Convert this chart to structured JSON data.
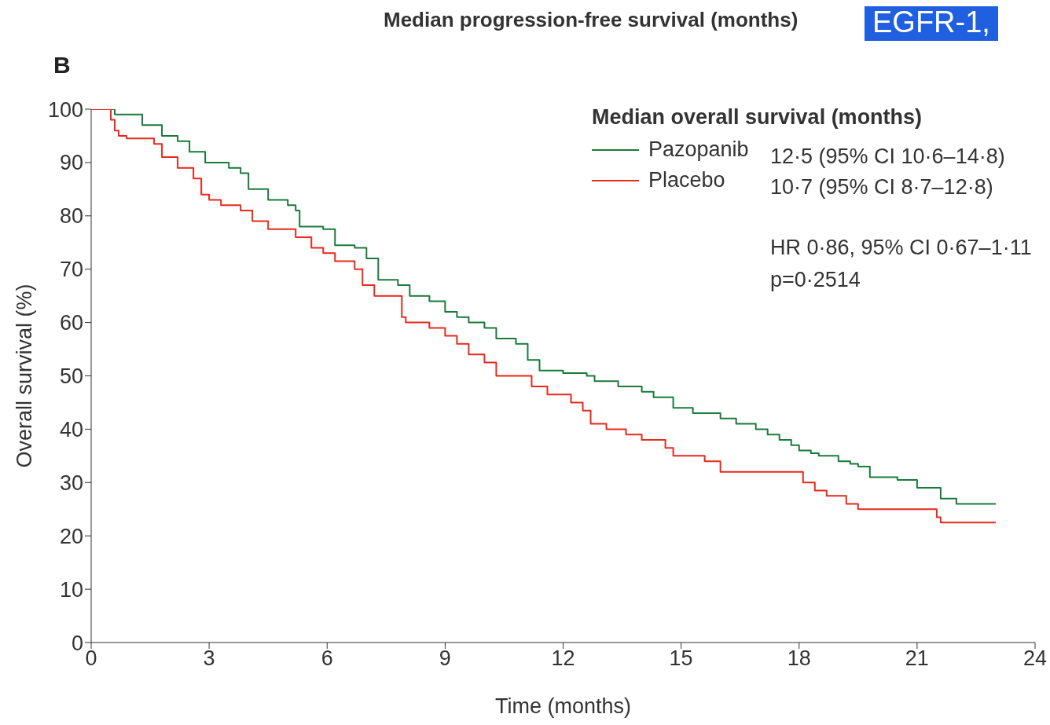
{
  "chart_data": {
    "type": "step",
    "xlabel": "Time (months)",
    "ylabel": "Overall survival (%)",
    "legend_title": "Median overall survival (months)",
    "annotations": [
      "Median progression-free survival (months)",
      "EGFR-1,",
      "B",
      "12·5 (95% CI 10·6–14·8)",
      "10·7 (95% CI 8·7–12·8)",
      "HR 0·86, 95% CI 0·67–1·11",
      "p=0·2514"
    ],
    "series": [
      {
        "name": "Pazopanib",
        "color": "#1a7a3a",
        "x": [
          0,
          0.6,
          1.3,
          1.8,
          2.2,
          2.5,
          2.9,
          3.5,
          3.8,
          4.0,
          4.5,
          5.0,
          5.2,
          5.3,
          5.9,
          6.2,
          6.7,
          7.0,
          7.3,
          7.8,
          8.1,
          8.6,
          9.0,
          9.3,
          9.6,
          10.0,
          10.3,
          10.8,
          11.1,
          11.4,
          12.0,
          12.6,
          12.8,
          13.4,
          14.0,
          14.3,
          14.8,
          15.3,
          16.0,
          16.4,
          16.9,
          17.2,
          17.5,
          17.8,
          18.0,
          18.3,
          18.5,
          19.0,
          19.3,
          19.5,
          19.8,
          20.5,
          21.0,
          21.6,
          22.0,
          23.0
        ],
        "values": [
          100,
          99,
          97,
          95,
          94,
          92,
          90,
          89,
          88,
          85,
          83,
          82,
          81,
          78,
          77.5,
          74.5,
          74,
          72,
          68,
          67,
          65,
          64,
          62,
          61,
          60,
          59,
          57,
          56,
          53,
          51,
          50.5,
          50,
          49,
          48,
          47,
          46,
          44,
          43,
          42,
          41,
          40,
          39,
          38,
          37,
          36,
          35.5,
          35,
          34,
          33.5,
          33,
          31,
          30.5,
          29,
          27,
          26,
          26
        ]
      },
      {
        "name": "Placebo",
        "color": "#e8291c",
        "x": [
          0,
          0.5,
          0.6,
          0.7,
          0.9,
          1.6,
          1.8,
          2.2,
          2.6,
          2.8,
          3.0,
          3.3,
          3.8,
          4.1,
          4.5,
          5.2,
          5.6,
          5.9,
          6.2,
          6.7,
          6.9,
          7.2,
          7.9,
          8.0,
          8.6,
          9.0,
          9.3,
          9.6,
          10.0,
          10.3,
          11.2,
          11.6,
          12.2,
          12.5,
          12.7,
          13.1,
          13.6,
          14.0,
          14.6,
          14.8,
          15.6,
          16.0,
          18.1,
          18.4,
          18.7,
          19.2,
          19.5,
          21.5,
          21.6,
          23.0
        ],
        "values": [
          100,
          98,
          96,
          95,
          94.5,
          93.5,
          91,
          89,
          87,
          84,
          83,
          82,
          81,
          79,
          77.5,
          76,
          74,
          73,
          71.5,
          70,
          67,
          65,
          61,
          60,
          59,
          57.5,
          56,
          54,
          52.5,
          50,
          48,
          46.5,
          45,
          43.5,
          41,
          40,
          39,
          38,
          36.5,
          35,
          34,
          32,
          30,
          28.5,
          27.5,
          26,
          25,
          23.5,
          22.5,
          22.5
        ]
      }
    ],
    "xlim": [
      0,
      24
    ],
    "xticks": [
      0,
      3,
      6,
      9,
      12,
      15,
      18,
      21,
      24
    ],
    "ylim": [
      0,
      100
    ],
    "yticks": [
      0,
      10,
      20,
      30,
      40,
      50,
      60,
      70,
      80,
      90,
      100
    ],
    "grid": false,
    "legend": "top right",
    "marker": "none",
    "line_style": "solid"
  }
}
